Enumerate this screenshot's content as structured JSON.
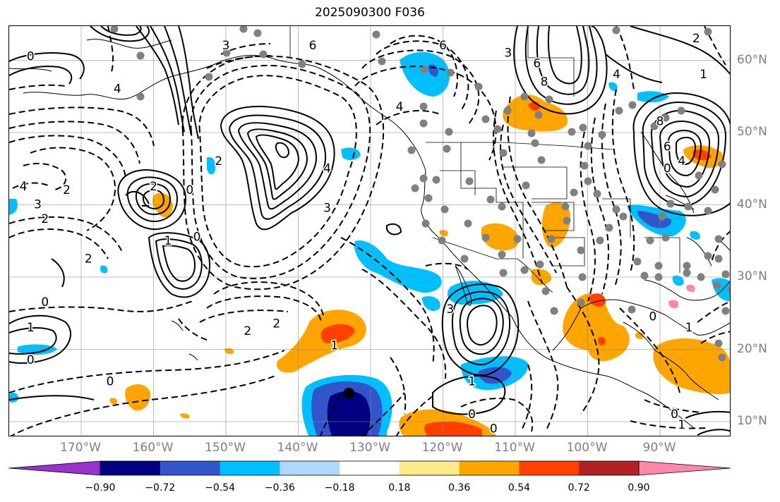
{
  "title": "2025090300 F036",
  "lon_labels": [
    "170°W",
    "160°W",
    "150°W",
    "140°W",
    "130°W",
    "120°W",
    "110°W",
    "100°W",
    "90°W"
  ],
  "lat_labels": [
    "60°N",
    "50°N",
    "40°N",
    "30°N",
    "20°N",
    "10°N"
  ],
  "colorbar": {
    "colors": [
      "#9933cc",
      "#000080",
      "#3355cc",
      "#00bfff",
      "#add8ff",
      "#ffffff",
      "#ffe98a",
      "#ffa500",
      "#ff4000",
      "#b22222",
      "#ff88aa"
    ],
    "ticks": [
      "−0.90",
      "−0.72",
      "−0.54",
      "−0.36",
      "−0.18",
      "0.18",
      "0.36",
      "0.54",
      "0.72",
      "0.90"
    ]
  },
  "contour_labels": [
    {
      "text": "0",
      "lon": -177,
      "lat": 60.5
    },
    {
      "text": "4",
      "lon": -165,
      "lat": 56
    },
    {
      "text": "3",
      "lon": -150,
      "lat": 62
    },
    {
      "text": "6",
      "lon": -138,
      "lat": 62
    },
    {
      "text": "4",
      "lon": -136,
      "lat": 45
    },
    {
      "text": "3",
      "lon": -136,
      "lat": 39.5
    },
    {
      "text": "2",
      "lon": -160,
      "lat": 42.5
    },
    {
      "text": "0",
      "lon": -155,
      "lat": 42
    },
    {
      "text": "3",
      "lon": -176,
      "lat": 40
    },
    {
      "text": "2",
      "lon": -175,
      "lat": 38
    },
    {
      "text": "4",
      "lon": -178,
      "lat": 42.5
    },
    {
      "text": "2",
      "lon": -172,
      "lat": 42
    },
    {
      "text": "1",
      "lon": -158,
      "lat": 35
    },
    {
      "text": "0",
      "lon": -154,
      "lat": 35.5
    },
    {
      "text": "2",
      "lon": -169,
      "lat": 32.5
    },
    {
      "text": "0",
      "lon": -175,
      "lat": 26.5
    },
    {
      "text": "1",
      "lon": -177,
      "lat": 23
    },
    {
      "text": "0",
      "lon": -177,
      "lat": 18.5
    },
    {
      "text": "0",
      "lon": -166,
      "lat": 15.5
    },
    {
      "text": "2",
      "lon": -147,
      "lat": 22.5
    },
    {
      "text": "2",
      "lon": -143,
      "lat": 23.5
    },
    {
      "text": "1",
      "lon": -135,
      "lat": 20.5
    },
    {
      "text": "3",
      "lon": -119,
      "lat": 25.5
    },
    {
      "text": "1",
      "lon": -116,
      "lat": 15.5
    },
    {
      "text": "0",
      "lon": -116,
      "lat": 11
    },
    {
      "text": "0",
      "lon": -113,
      "lat": 9
    },
    {
      "text": "0",
      "lon": -91,
      "lat": 24.5
    },
    {
      "text": "1",
      "lon": -86,
      "lat": 23
    },
    {
      "text": "0",
      "lon": -88,
      "lat": 11
    },
    {
      "text": "1",
      "lon": -87,
      "lat": 9.5
    },
    {
      "text": "4",
      "lon": -126,
      "lat": 53.5
    },
    {
      "text": "8",
      "lon": -106,
      "lat": 57
    },
    {
      "text": "6",
      "lon": -107,
      "lat": 59.5
    },
    {
      "text": "3",
      "lon": -111,
      "lat": 61
    },
    {
      "text": "6",
      "lon": -120,
      "lat": 62
    },
    {
      "text": "8",
      "lon": -90,
      "lat": 51.5
    },
    {
      "text": "6",
      "lon": -89,
      "lat": 48
    },
    {
      "text": "4",
      "lon": -87,
      "lat": 46
    },
    {
      "text": "0",
      "lon": -89,
      "lat": 45
    },
    {
      "text": "2",
      "lon": -85,
      "lat": 63
    },
    {
      "text": "1",
      "lon": -84,
      "lat": 58
    },
    {
      "text": "4",
      "lon": -96,
      "lat": 58
    },
    {
      "text": "2",
      "lon": -151,
      "lat": 46
    }
  ],
  "pressure_centers": [
    {
      "type": "low",
      "lon": -133,
      "lat": 13.9
    }
  ]
}
